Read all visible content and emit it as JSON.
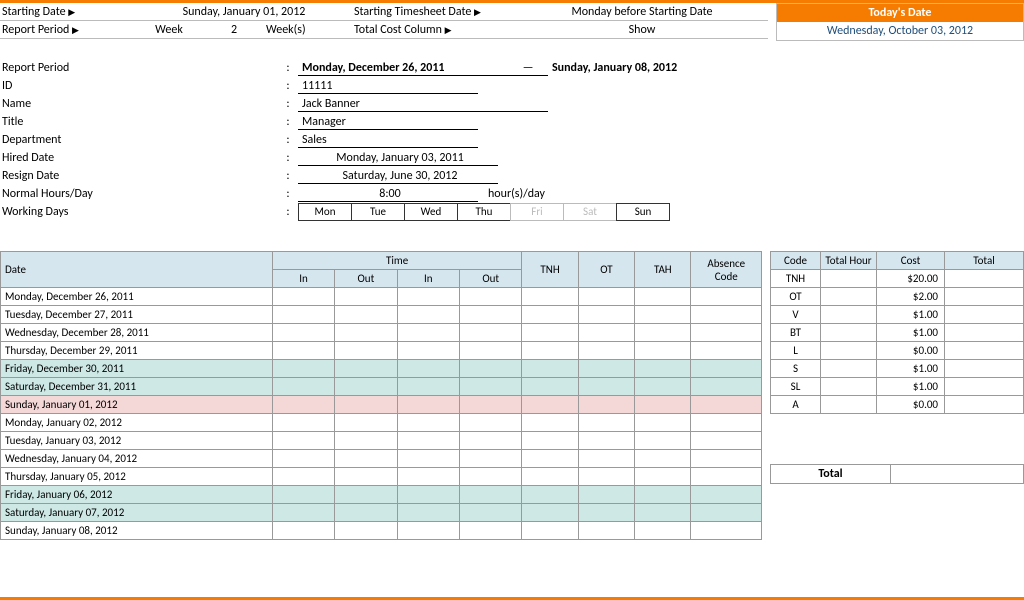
{
  "config": {
    "starting_date_label": "Starting Date",
    "starting_date_value": "Sunday, January 01, 2012",
    "timesheet_date_label": "Starting Timesheet Date",
    "timesheet_date_value": "Monday before Starting Date",
    "report_period_label": "Report Period",
    "week_label": "Week",
    "week_num": "2",
    "weeks_label": "Week(s)",
    "total_cost_label": "Total Cost Column",
    "show_label": "Show"
  },
  "today": {
    "header": "Today's Date",
    "value": "Wednesday, October 03, 2012"
  },
  "info": {
    "report_period": {
      "label": "Report Period",
      "from": "Monday, December 26, 2011",
      "to": "Sunday, January 08, 2012"
    },
    "id": {
      "label": "ID",
      "value": "11111"
    },
    "name": {
      "label": "Name",
      "value": "Jack Banner"
    },
    "title": {
      "label": "Title",
      "value": "Manager"
    },
    "department": {
      "label": "Department",
      "value": "Sales"
    },
    "hired": {
      "label": "Hired Date",
      "value": "Monday, January 03, 2011"
    },
    "resign": {
      "label": "Resign Date",
      "value": "Saturday, June 30, 2012"
    },
    "hours": {
      "label": "Normal Hours/Day",
      "value": "8:00",
      "unit": "hour(s)/day"
    },
    "workdays": {
      "label": "Working Days"
    },
    "days": [
      "Mon",
      "Tue",
      "Wed",
      "Thu",
      "Fri",
      "Sat",
      "Sun"
    ],
    "days_active": [
      true,
      true,
      true,
      true,
      false,
      false,
      true
    ]
  },
  "main_headers": {
    "date": "Date",
    "time": "Time",
    "in": "In",
    "out": "Out",
    "tnh": "TNH",
    "ot": "OT",
    "tah": "TAH",
    "abs": "Absence Code"
  },
  "rows": [
    {
      "date": "Monday, December 26, 2011",
      "cls": ""
    },
    {
      "date": "Tuesday, December 27, 2011",
      "cls": ""
    },
    {
      "date": "Wednesday, December 28, 2011",
      "cls": ""
    },
    {
      "date": "Thursday, December 29, 2011",
      "cls": ""
    },
    {
      "date": "Friday, December 30, 2011",
      "cls": "row-hl"
    },
    {
      "date": "Saturday, December 31, 2011",
      "cls": "row-hl"
    },
    {
      "date": "Sunday, January 01, 2012",
      "cls": "row-wk"
    },
    {
      "date": "Monday, January 02, 2012",
      "cls": ""
    },
    {
      "date": "Tuesday, January 03, 2012",
      "cls": ""
    },
    {
      "date": "Wednesday, January 04, 2012",
      "cls": ""
    },
    {
      "date": "Thursday, January 05, 2012",
      "cls": ""
    },
    {
      "date": "Friday, January 06, 2012",
      "cls": "row-hl"
    },
    {
      "date": "Saturday, January 07, 2012",
      "cls": "row-hl"
    },
    {
      "date": "Sunday, January 08, 2012",
      "cls": ""
    }
  ],
  "cost_headers": {
    "code": "Code",
    "hour": "Total Hour",
    "cost": "Cost",
    "total": "Total"
  },
  "cost_rows": [
    {
      "code": "TNH",
      "cost": "$20.00"
    },
    {
      "code": "OT",
      "cost": "$2.00"
    },
    {
      "code": "V",
      "cost": "$1.00"
    },
    {
      "code": "BT",
      "cost": "$1.00"
    },
    {
      "code": "L",
      "cost": "$0.00"
    },
    {
      "code": "S",
      "cost": "$1.00"
    },
    {
      "code": "SL",
      "cost": "$1.00"
    },
    {
      "code": "A",
      "cost": "$0.00"
    }
  ],
  "total_label": "Total",
  "colors": {
    "accent": "#f57c00",
    "header_bg": "#d6e6ef",
    "highlight_bg": "#cde8e5",
    "weekend_bg": "#f4d7d7",
    "link_color": "#1f4e79"
  }
}
